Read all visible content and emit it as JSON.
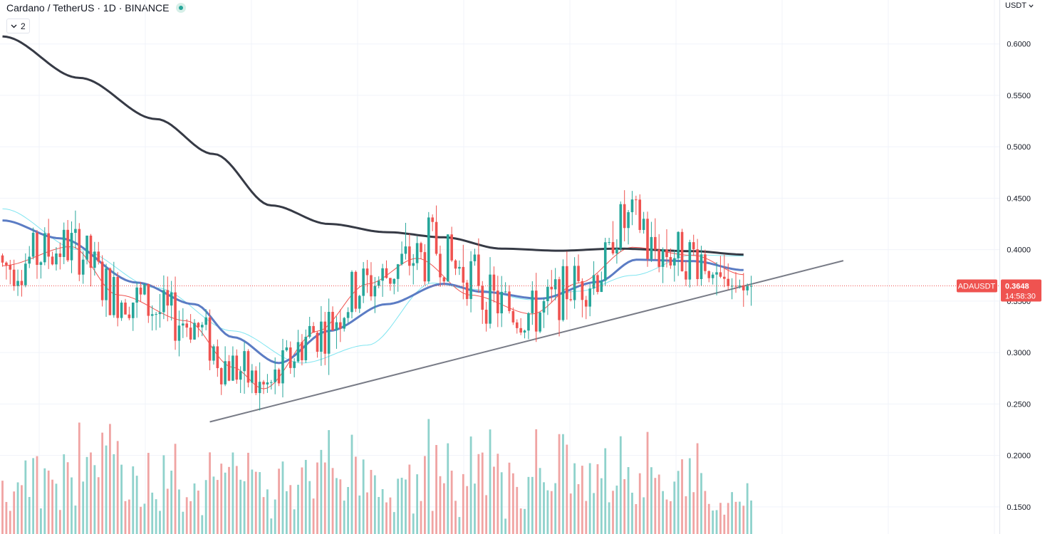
{
  "header": {
    "symbol_title": "Cardano / TetherUS · 1D · BINANCE",
    "indicator_count": "2",
    "chevron_icon": "chevron-down-icon",
    "status": "market-open-dot"
  },
  "axis": {
    "currency_label": "USDT",
    "currency_icon": "chevron-down-icon"
  },
  "colors": {
    "up": "#26a69a",
    "down": "#ef5350",
    "up_volume": "#8fd2cc",
    "down_volume": "#f0a4a3",
    "ma200": "#363a45",
    "ma50": "#5b7cc4",
    "ma20": "#ef5350",
    "ema": "#7fe5f0",
    "trendline": "#787b86",
    "grid": "#f0f3fa"
  },
  "chart_data": {
    "type": "candlestick",
    "title": "Cardano / TetherUS · 1D · BINANCE",
    "symbol": "ADAUSDT",
    "ylabel": "USDT",
    "ylim": [
      0.1236,
      0.6427
    ],
    "y_ticks": [
      "0.6000",
      "0.5500",
      "0.5000",
      "0.4500",
      "0.4000",
      "0.3500",
      "0.3000",
      "0.2500",
      "0.2000",
      "0.1500"
    ],
    "last_price": {
      "symbol": "ADAUSDT",
      "price": "0.3648",
      "value": 0.3648,
      "countdown": "14:58:30"
    },
    "candles_start_index": 0,
    "candle_spacing_days": 1,
    "candles_count": 196,
    "ma_waypoints": {
      "note": "approximate moving-average values (price) at candle indices",
      "ma200": [
        [
          0,
          0.6073
        ],
        [
          20,
          0.567
        ],
        [
          40,
          0.527
        ],
        [
          55,
          0.493
        ],
        [
          70,
          0.443
        ],
        [
          85,
          0.425
        ],
        [
          100,
          0.417
        ],
        [
          115,
          0.412
        ],
        [
          130,
          0.401
        ],
        [
          145,
          0.399
        ],
        [
          160,
          0.401
        ],
        [
          180,
          0.3985
        ],
        [
          193,
          0.3952
        ]
      ],
      "ma50": [
        [
          0,
          0.4284
        ],
        [
          15,
          0.411
        ],
        [
          35,
          0.368
        ],
        [
          50,
          0.347
        ],
        [
          60,
          0.315
        ],
        [
          72,
          0.2898
        ],
        [
          85,
          0.321
        ],
        [
          100,
          0.347
        ],
        [
          115,
          0.3668
        ],
        [
          125,
          0.359
        ],
        [
          140,
          0.3524
        ],
        [
          155,
          0.3686
        ],
        [
          165,
          0.3902
        ],
        [
          180,
          0.3888
        ],
        [
          193,
          0.3802
        ]
      ],
      "ma20": [
        [
          0,
          0.3844
        ],
        [
          18,
          0.403
        ],
        [
          30,
          0.356
        ],
        [
          48,
          0.3308
        ],
        [
          60,
          0.2856
        ],
        [
          68,
          0.2647
        ],
        [
          82,
          0.3208
        ],
        [
          95,
          0.3666
        ],
        [
          108,
          0.3916
        ],
        [
          122,
          0.3558
        ],
        [
          138,
          0.3375
        ],
        [
          150,
          0.3676
        ],
        [
          164,
          0.4023
        ],
        [
          180,
          0.3944
        ],
        [
          193,
          0.3757
        ]
      ],
      "ema": [
        [
          0,
          0.4398
        ],
        [
          20,
          0.4
        ],
        [
          40,
          0.363
        ],
        [
          60,
          0.321
        ],
        [
          78,
          0.2898
        ],
        [
          95,
          0.3072
        ],
        [
          112,
          0.3676
        ],
        [
          122,
          0.3616
        ],
        [
          138,
          0.3514
        ],
        [
          150,
          0.3596
        ],
        [
          164,
          0.375
        ],
        [
          180,
          0.3949
        ],
        [
          193,
          0.3938
        ]
      ]
    },
    "trendline": {
      "from": [
        54,
        0.2326
      ],
      "to": [
        219,
        0.3893
      ]
    },
    "volume_axis": "relative",
    "legend_placement": "none"
  }
}
